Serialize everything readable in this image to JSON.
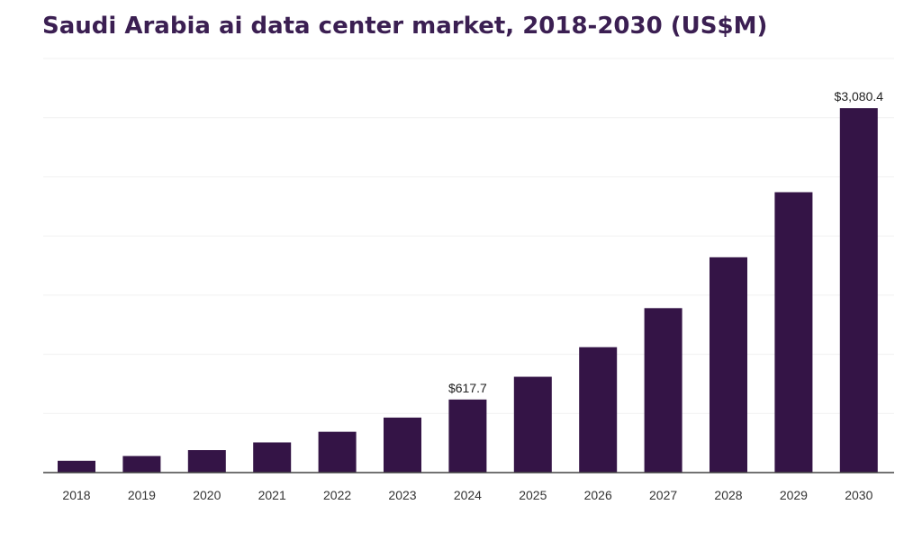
{
  "chart_data": {
    "type": "bar",
    "title": "Saudi Arabia ai data center market, 2018-2030 (US$M)",
    "categories": [
      "2018",
      "2019",
      "2020",
      "2021",
      "2022",
      "2023",
      "2024",
      "2025",
      "2026",
      "2027",
      "2028",
      "2029",
      "2030"
    ],
    "values": [
      100,
      140,
      190,
      255,
      345,
      465,
      617.7,
      810,
      1060,
      1390,
      1820,
      2370,
      3080.4
    ],
    "data_labels": [
      {
        "index": 6,
        "text": "$617.7"
      },
      {
        "index": 12,
        "text": "$3,080.4"
      }
    ],
    "xlabel": "",
    "ylabel": "",
    "ylim": [
      0,
      3500
    ],
    "grid": true,
    "y_tick_labels_visible": false,
    "legend": "none",
    "colors": {
      "bar": "#341446",
      "title": "#3b1f52",
      "gridline": "#f1f1f1",
      "axis": "#444444"
    }
  }
}
